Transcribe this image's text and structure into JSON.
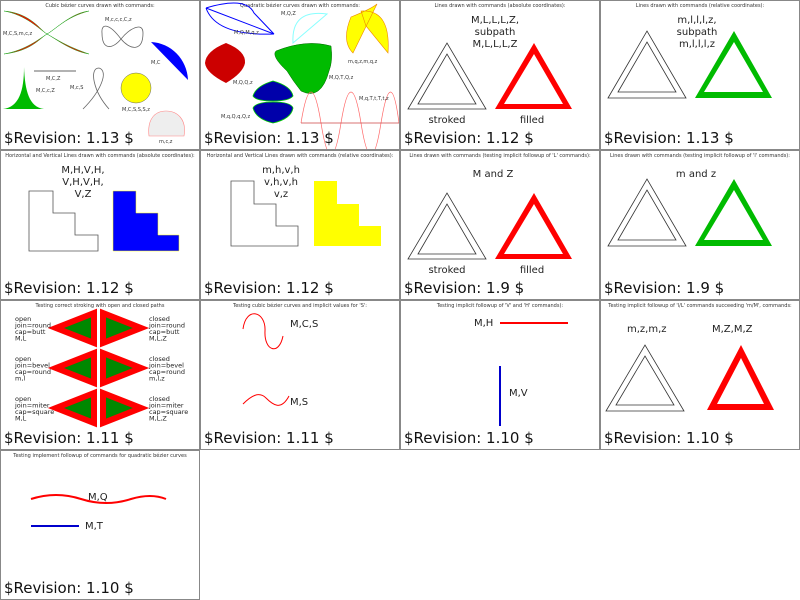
{
  "cells": [
    {
      "title": "Cubic bézier curves drawn with commands:",
      "revision": "$Revision: 1.13 $",
      "labels": [
        "M,C,S,m,c,z",
        "M,c,c,c,C,z",
        "M,C",
        "M,C,Z",
        "M,C,c,Z",
        "M,c,S",
        "M,C,S,S,S,z",
        "m,c,z"
      ]
    },
    {
      "title": "Quadratic bézier curves drawn with commands:",
      "revision": "$Revision: 1.13 $",
      "labels": [
        "M,Q,M,q,z",
        "M,Q,Z",
        "m,q,z,m,q,z",
        "M,Q,Q,z",
        "M,Q,T,Q,z",
        "M,q,Q,q,Q,z",
        "M,q,T,t,T,t,z"
      ]
    },
    {
      "title": "Lines drawn with commands (absolute coordinates):",
      "revision": "$Revision: 1.12 $",
      "labels": [
        "M,L,L,L,Z,",
        "subpath",
        "M,L,L,L,Z",
        "stroked",
        "filled"
      ]
    },
    {
      "title": "Lines drawn with commands (relative coordinates):",
      "revision": "$Revision: 1.13 $",
      "labels": [
        "m,l,l,l,z,",
        "subpath",
        "m,l,l,l,z"
      ]
    },
    {
      "title": "Horizontal and Vertical Lines drawn with commands (absolute coordinates):",
      "revision": "$Revision: 1.12 $",
      "labels": [
        "M,H,V,H,",
        "V,H,V,H,",
        "V,Z"
      ]
    },
    {
      "title": "Horizontal and Vertical Lines drawn with commands (relative coordinates):",
      "revision": "$Revision: 1.12 $",
      "labels": [
        "m,h,v,h",
        "v,h,v,h",
        "v,z"
      ]
    },
    {
      "title": "Lines drawn with commands (testing implicit followup of 'L' commands):",
      "revision": "$Revision: 1.9 $",
      "labels": [
        "M and Z",
        "stroked",
        "filled"
      ]
    },
    {
      "title": "Lines drawn with commands (testing implicit followup of 'l' commands):",
      "revision": "$Revision: 1.9 $",
      "labels": [
        "m and z"
      ]
    },
    {
      "title": "Testing correct stroking with open and closed paths",
      "revision": "$Revision: 1.11 $",
      "left": [
        [
          "open",
          "join=round",
          "cap=butt",
          "M,L"
        ],
        [
          "open",
          "join=bevel",
          "cap=round",
          "m,l"
        ],
        [
          "open",
          "join=miter",
          "cap=square",
          "M,L"
        ]
      ],
      "right": [
        [
          "closed",
          "join=round",
          "cap=butt",
          "M,L,Z"
        ],
        [
          "closed",
          "join=bevel",
          "cap=round",
          "m,l,z"
        ],
        [
          "closed",
          "join=miter",
          "cap=square",
          "M,L,Z"
        ]
      ]
    },
    {
      "title": "Testing cubic bézier curves and implicit values for 'S':",
      "revision": "$Revision: 1.11 $",
      "labels": [
        "M,C,S",
        "M,S"
      ]
    },
    {
      "title": "Testing implicit followup of 'V' and 'H' commands):",
      "revision": "$Revision: 1.10 $",
      "labels": [
        "M,H",
        "M,V"
      ]
    },
    {
      "title": "Testing implicit followup of 'l/L' commands succeeding 'm/M', commands:",
      "revision": "$Revision: 1.10 $",
      "labels": [
        "m,z,m,z",
        "M,Z,M,Z"
      ]
    },
    {
      "title": "Testing implement followup of commands for quadratic bézier curves",
      "revision": "$Revision: 1.10 $",
      "labels": [
        "M,Q",
        "M,T"
      ]
    }
  ],
  "colors": {
    "red": "#ff0000",
    "green": "#00c000",
    "blue": "#0000ff",
    "yellow": "#ffff00",
    "border": "#888888"
  }
}
